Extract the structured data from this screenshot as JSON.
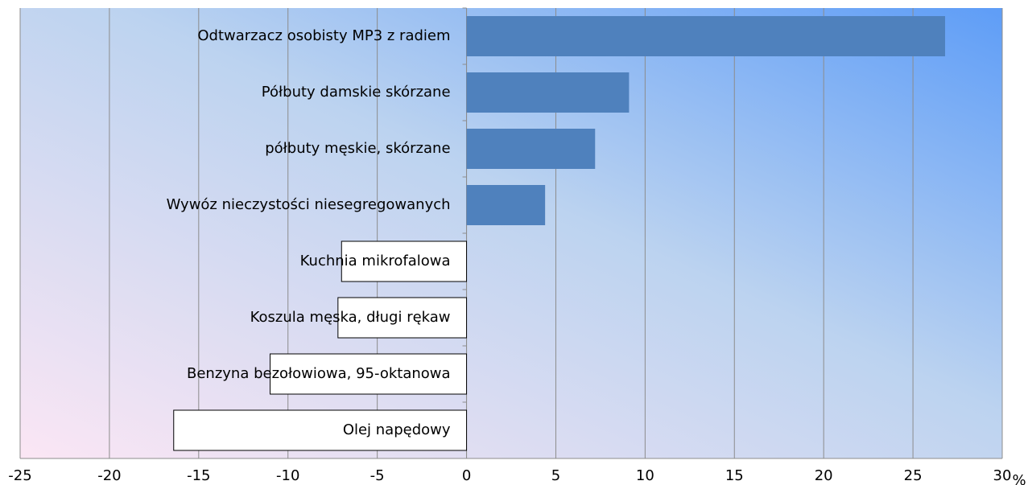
{
  "chart_data": {
    "type": "bar",
    "orientation": "horizontal",
    "categories": [
      "Odtwarzacz osobisty MP3 z radiem",
      "Półbuty damskie skórzane",
      "półbuty męskie, skórzane",
      "Wywóz nieczystości niesegregowanych",
      "Kuchnia mikrofalowa",
      "Koszula męska, długi rękaw",
      "Benzyna bezołowiowa, 95-oktanowa",
      "Olej napędowy"
    ],
    "values": [
      26.8,
      9.1,
      7.2,
      4.4,
      -7.0,
      -7.2,
      -11.0,
      -16.4
    ],
    "colors": {
      "positive": "#4f81bd",
      "negative": "#ffffff"
    },
    "xlabel": "%",
    "xlim": [
      -25,
      30
    ],
    "xticks": [
      -25,
      -20,
      -15,
      -10,
      -5,
      0,
      5,
      10,
      15,
      20,
      25,
      30
    ],
    "grid": true
  }
}
